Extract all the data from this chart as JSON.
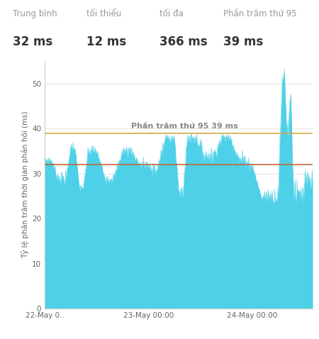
{
  "stats": {
    "mean_label": "Trung bình",
    "mean_val": "32 ms",
    "min_label": "tối thiểu",
    "min_val": "12 ms",
    "max_label": "tối đa",
    "max_val": "366 ms",
    "p95_label": "Phần trăm thứ 95",
    "p95_val": "39 ms"
  },
  "ylabel": "Tỷ lệ phần trăm thời gian phản hồi (ms)",
  "mean_line": 32,
  "p95_line": 39,
  "mean_line_color": "#c0693a",
  "p95_line_color": "#d4a849",
  "area_color": "#4dd0e8",
  "annotation_text": "Phần trăm thứ 95 39 ms",
  "annotation_color": "#888888",
  "ylim": [
    0,
    55
  ],
  "yticks": [
    0,
    10,
    20,
    30,
    40,
    50
  ],
  "background_color": "#ffffff",
  "grid_color": "#e8e8e8",
  "xtick_labels": [
    "22-May 0..",
    "23-May 00:00",
    "24-May 00:00"
  ],
  "stats_label_color": "#999999",
  "stats_value_color": "#333333"
}
